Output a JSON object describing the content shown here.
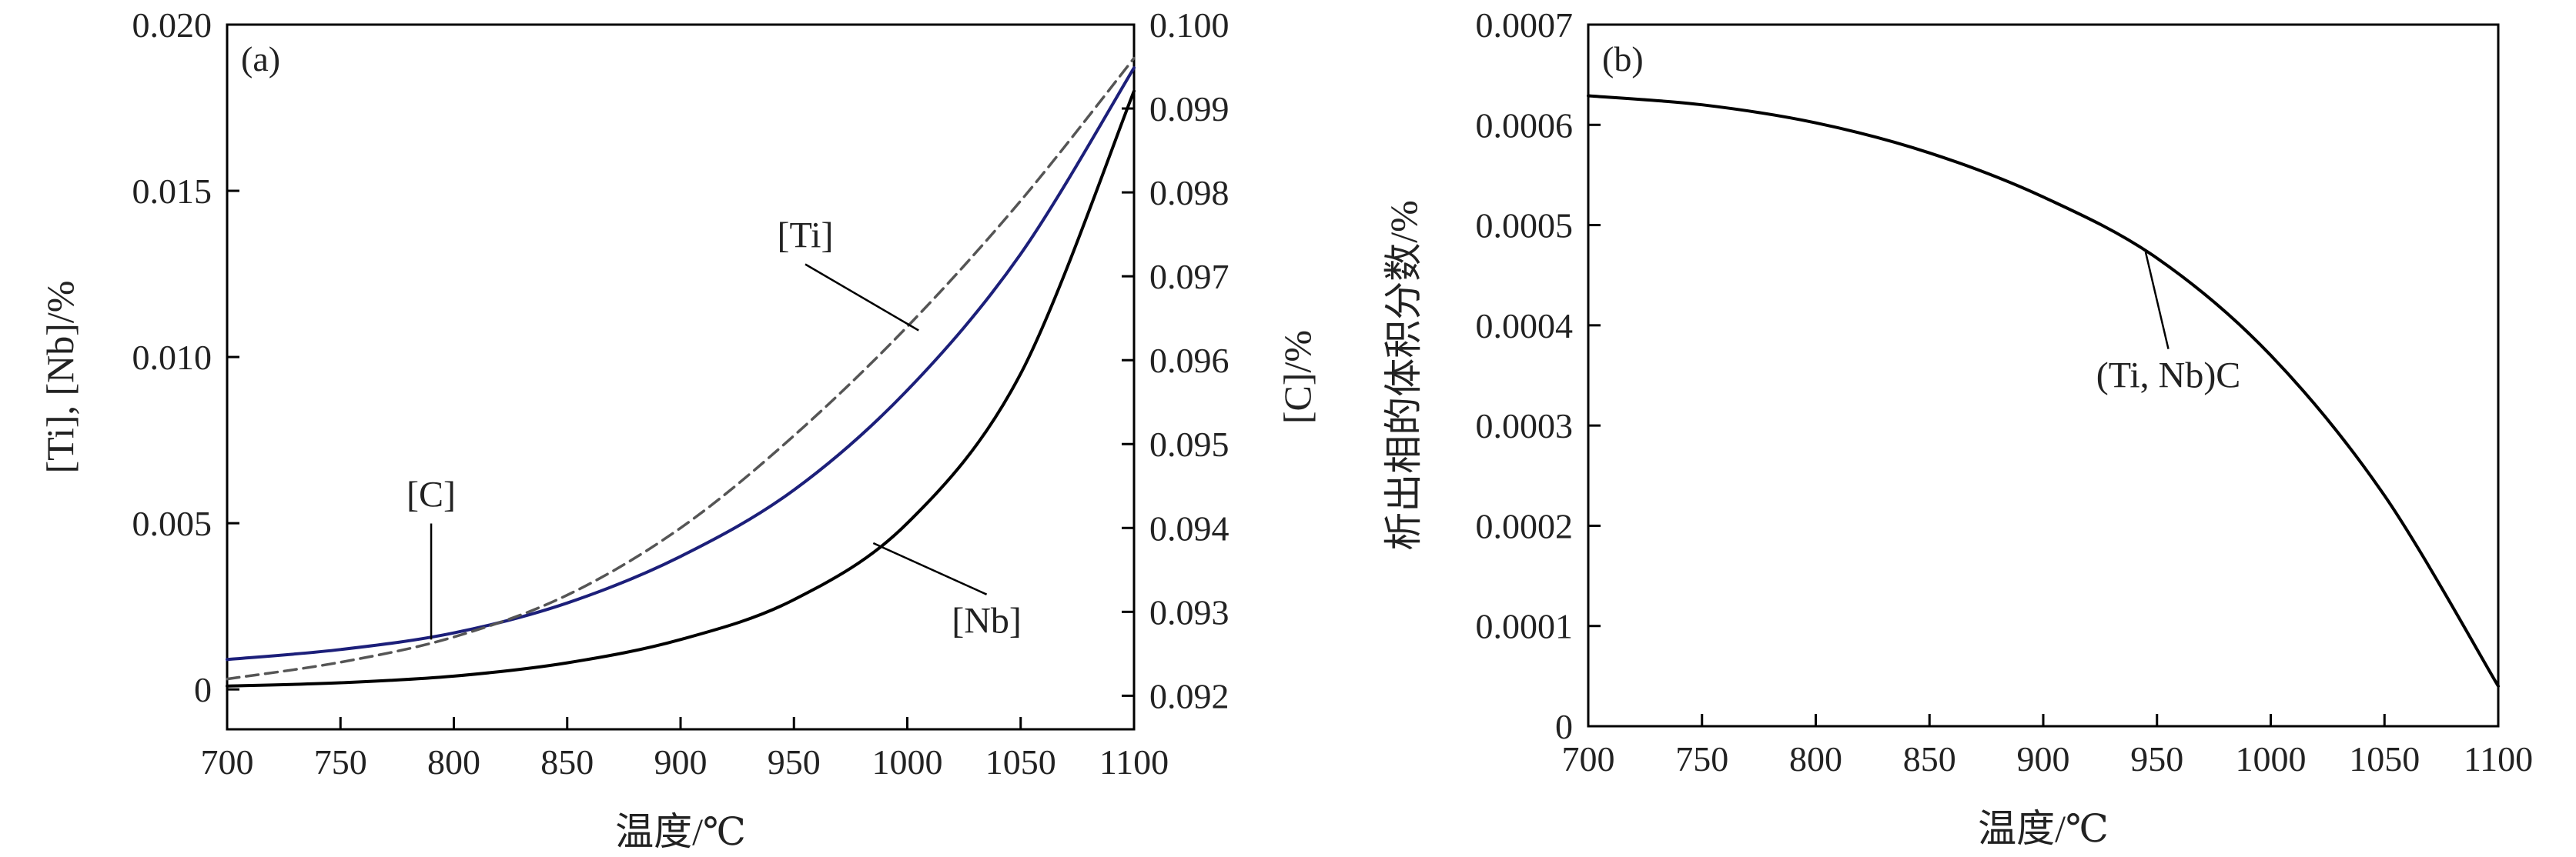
{
  "chart_data": [
    {
      "type": "line",
      "panel_label": "(a)",
      "xlabel": "温度/℃",
      "ylabel": "[Ti], [Nb]/%",
      "y2label": "[C]/%",
      "xlim": [
        700,
        1100
      ],
      "ylim": [
        -0.0012,
        0.02
      ],
      "y2lim": [
        0.0916,
        0.1
      ],
      "xticks": [
        "700",
        "750",
        "800",
        "850",
        "900",
        "950",
        "1000",
        "1050",
        "1100"
      ],
      "yticks": [
        "0",
        "0.005",
        "0.010",
        "0.015",
        "0.020"
      ],
      "y2ticks": [
        "0.092",
        "0.093",
        "0.094",
        "0.095",
        "0.096",
        "0.097",
        "0.098",
        "0.099",
        "0.100"
      ],
      "grid": false,
      "series": [
        {
          "name": "[Ti]",
          "axis": "left",
          "color": "#1c1f7a",
          "style": "solid",
          "x": [
            700,
            750,
            800,
            850,
            900,
            950,
            1000,
            1050,
            1100
          ],
          "y": [
            0.0009,
            0.0012,
            0.0017,
            0.0026,
            0.004,
            0.006,
            0.009,
            0.0131,
            0.0187
          ]
        },
        {
          "name": "[Nb]",
          "axis": "left",
          "color": "#000000",
          "style": "solid",
          "x": [
            700,
            750,
            800,
            850,
            900,
            950,
            1000,
            1050,
            1100
          ],
          "y": [
            0.0001,
            0.0002,
            0.0004,
            0.0008,
            0.0015,
            0.0027,
            0.005,
            0.0095,
            0.018
          ]
        },
        {
          "name": "[C]",
          "axis": "right",
          "color": "#555555",
          "style": "dashed",
          "x": [
            700,
            750,
            800,
            850,
            900,
            950,
            1000,
            1050,
            1100
          ],
          "y": [
            0.0922,
            0.0924,
            0.0927,
            0.0932,
            0.094,
            0.0951,
            0.0964,
            0.0979,
            0.0996
          ]
        }
      ],
      "annotations": [
        {
          "text": "[Ti]",
          "x": 955,
          "y": 0.0133,
          "target_x": 1005,
          "target_y": 0.0108
        },
        {
          "text": "[C]",
          "x": 790,
          "y": 0.0055,
          "target_x": 790,
          "target_y": 0.0015
        },
        {
          "text": "[Nb]",
          "x": 1035,
          "y": 0.0017,
          "target_x": 985,
          "target_y": 0.0044
        }
      ]
    },
    {
      "type": "line",
      "panel_label": "(b)",
      "xlabel": "温度/℃",
      "ylabel": "析出相的体积分数/%",
      "xlim": [
        700,
        1100
      ],
      "ylim": [
        0,
        0.0007
      ],
      "xticks": [
        "700",
        "750",
        "800",
        "850",
        "900",
        "950",
        "1000",
        "1050",
        "1100"
      ],
      "yticks": [
        "0",
        "0.0001",
        "0.0002",
        "0.0003",
        "0.0004",
        "0.0005",
        "0.0006",
        "0.0007"
      ],
      "grid": false,
      "series": [
        {
          "name": "(Ti, Nb)C",
          "color": "#000000",
          "style": "solid",
          "x": [
            700,
            750,
            800,
            850,
            900,
            950,
            1000,
            1050,
            1100
          ],
          "y": [
            0.000629,
            0.00062,
            0.000602,
            0.000572,
            0.000528,
            0.000467,
            0.00037,
            0.00023,
            4e-05
          ]
        }
      ],
      "annotations": [
        {
          "text": "(Ti, Nb)C",
          "x": 955,
          "y": 0.000338,
          "target_x": 945,
          "target_y": 0.000473
        }
      ]
    }
  ]
}
